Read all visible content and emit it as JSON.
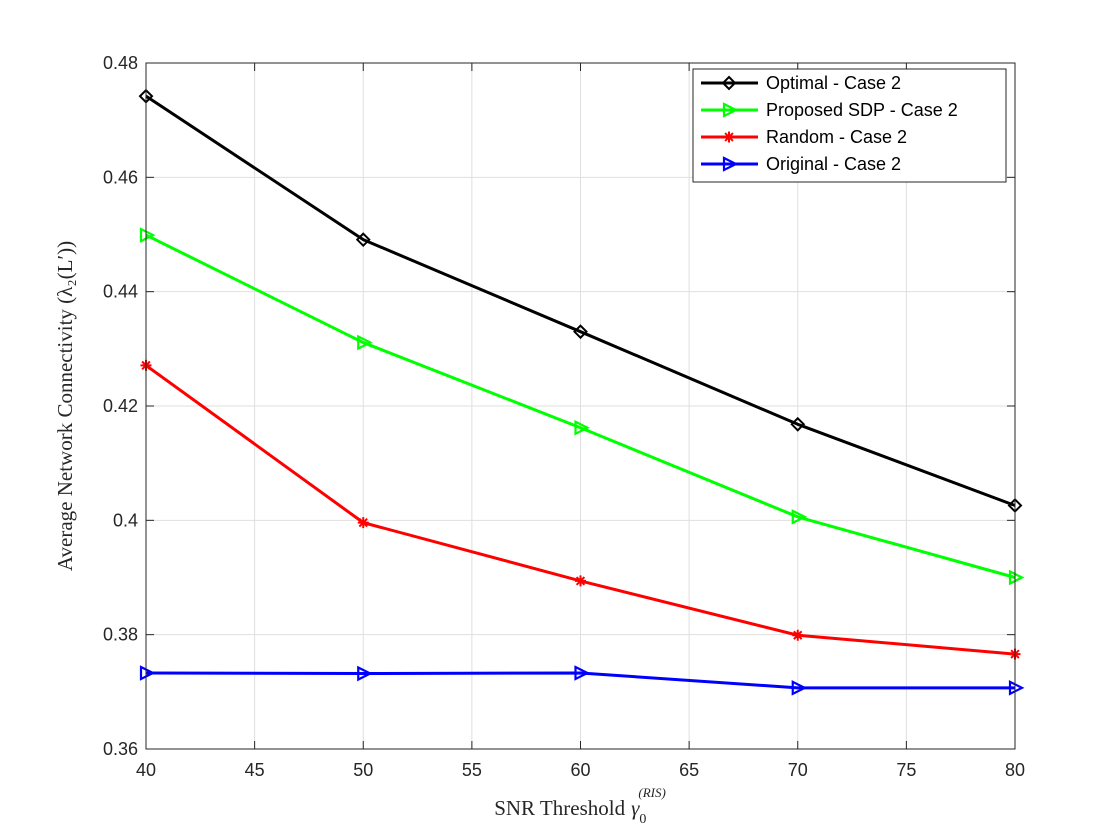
{
  "chart_data": {
    "type": "line",
    "title": "",
    "xlabel": "SNR Threshold",
    "xlabel_symbol": "γ",
    "xlabel_subscript": "0",
    "xlabel_superscript": "(RIS)",
    "ylabel": "Average Network Connectivity (λ₂(L′))",
    "x": [
      40,
      50,
      60,
      70,
      80
    ],
    "xlim": [
      40,
      80
    ],
    "ylim": [
      0.36,
      0.48
    ],
    "xticks": [
      "40",
      "45",
      "50",
      "55",
      "60",
      "65",
      "70",
      "75",
      "80"
    ],
    "yticks": [
      "0.36",
      "0.38",
      "0.4",
      "0.42",
      "0.44",
      "0.46",
      "0.48"
    ],
    "grid": true,
    "legend_position": "top-right",
    "series": [
      {
        "name": "Optimal - Case 2",
        "color": "#000000",
        "marker": "diamond",
        "values": [
          0.4742,
          0.4491,
          0.433,
          0.4168,
          0.4026
        ]
      },
      {
        "name": "Proposed SDP - Case 2",
        "color": "#00ff00",
        "marker": "triangle-right",
        "values": [
          0.4499,
          0.4311,
          0.4162,
          0.4006,
          0.39
        ]
      },
      {
        "name": "Random - Case 2",
        "color": "#ff0000",
        "marker": "asterisk",
        "values": [
          0.4271,
          0.3996,
          0.3894,
          0.3799,
          0.3766
        ]
      },
      {
        "name": "Original - Case 2",
        "color": "#0000ff",
        "marker": "triangle-right",
        "values": [
          0.3733,
          0.3732,
          0.3733,
          0.3707,
          0.3707
        ]
      }
    ]
  }
}
